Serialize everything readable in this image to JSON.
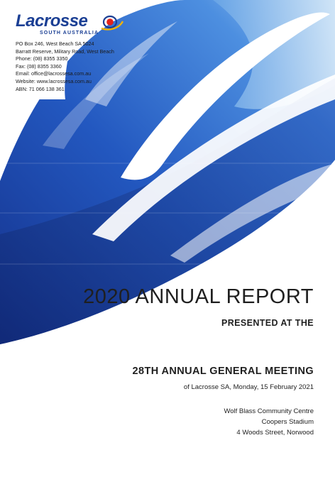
{
  "logo": {
    "name": "Lacrosse",
    "subtitle": "SOUTH AUSTRALIA"
  },
  "contact": {
    "lines": [
      "PO Box 246, West Beach SA 5024",
      "Barratt Reserve, Military Road, West Beach",
      "Phone: (08) 8355 3350",
      "Fax: (08) 8355 3360",
      "Email: office@lacrossesa.com.au",
      "Website: www.lacrossesa.com.au",
      "ABN: 71 066 138 361"
    ]
  },
  "report": {
    "title": "2020 ANNUAL REPORT",
    "presented": "PRESENTED AT THE"
  },
  "meeting": {
    "title": "28TH ANNUAL GENERAL MEETING",
    "subtitle": "of Lacrosse SA, Monday, 15 February 2021"
  },
  "venue": {
    "lines": [
      "Wolf Blass Community Centre",
      "Coopers Stadium",
      "4 Woods Street, Norwood"
    ]
  },
  "colors": {
    "deep_blue": "#1b3a9a",
    "mid_blue": "#2e6fd0",
    "light_blue": "#9cc6ee",
    "text": "#1f1f1f"
  }
}
